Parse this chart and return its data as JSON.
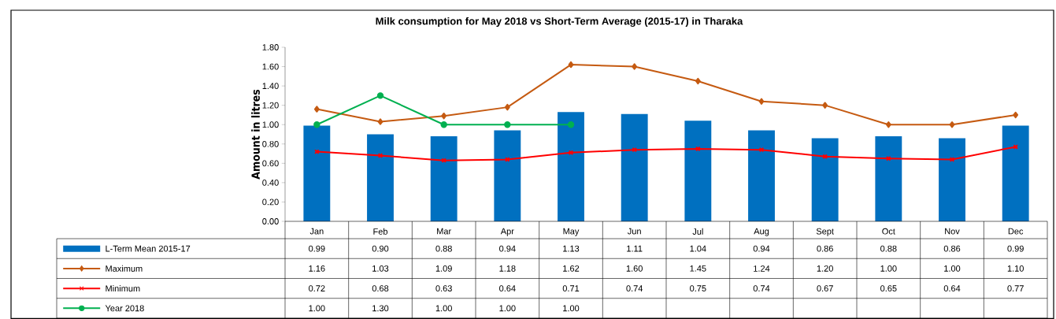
{
  "chart_data": {
    "type": "bar",
    "title": "Milk consumption for May 2018 vs Short-Term Average (2015-17) in Tharaka",
    "ylabel": "Amount in litres",
    "categories": [
      "Jan",
      "Feb",
      "Mar",
      "Apr",
      "May",
      "Jun",
      "Jul",
      "Aug",
      "Sept",
      "Oct",
      "Nov",
      "Dec"
    ],
    "ylim": [
      0,
      1.8
    ],
    "yticks": [
      {
        "value": 0,
        "label": "0.00"
      },
      {
        "value": 0.2,
        "label": "0.20"
      },
      {
        "value": 0.4,
        "label": "0.40"
      },
      {
        "value": 0.6,
        "label": "0.60"
      },
      {
        "value": 0.8,
        "label": "0.80"
      },
      {
        "value": 1,
        "label": "1.00"
      },
      {
        "value": 1.2,
        "label": "1.20"
      },
      {
        "value": 1.4,
        "label": "1.40"
      },
      {
        "value": 1.6,
        "label": "1.60"
      },
      {
        "value": 1.8,
        "label": "1.80"
      }
    ],
    "legend": "bottom",
    "grid": false,
    "series": [
      {
        "name": "L-Term Mean 2015-17",
        "color": "#0070c0",
        "values": [
          0.99,
          0.9,
          0.88,
          0.94,
          1.13,
          1.11,
          1.04,
          0.94,
          0.86,
          0.88,
          0.86,
          0.99
        ],
        "value_labels": [
          "0.99",
          "0.90",
          "0.88",
          "0.94",
          "1.13",
          "1.11",
          "1.04",
          "0.94",
          "0.86",
          "0.88",
          "0.86",
          "0.99"
        ]
      },
      {
        "name": "Maximum",
        "type": "line",
        "color": "#c55a11",
        "marker": "diamond",
        "values": [
          1.16,
          1.03,
          1.09,
          1.18,
          1.62,
          1.6,
          1.45,
          1.24,
          1.2,
          1.0,
          1.0,
          1.1
        ],
        "value_labels": [
          "1.16",
          "1.03",
          "1.09",
          "1.18",
          "1.62",
          "1.60",
          "1.45",
          "1.24",
          "1.20",
          "1.00",
          "1.00",
          "1.10"
        ]
      },
      {
        "name": "Minimum",
        "type": "line",
        "color": "#ff0000",
        "marker": "cross",
        "values": [
          0.72,
          0.68,
          0.63,
          0.64,
          0.71,
          0.74,
          0.75,
          0.74,
          0.67,
          0.65,
          0.64,
          0.77
        ],
        "value_labels": [
          "0.72",
          "0.68",
          "0.63",
          "0.64",
          "0.71",
          "0.74",
          "0.75",
          "0.74",
          "0.67",
          "0.65",
          "0.64",
          "0.77"
        ]
      },
      {
        "name": "Year 2018",
        "type": "line",
        "color": "#00b050",
        "marker": "circle",
        "values": [
          1.0,
          1.3,
          1.0,
          1.0,
          1.0,
          null,
          null,
          null,
          null,
          null,
          null,
          null
        ],
        "value_labels": [
          "1.00",
          "1.30",
          "1.00",
          "1.00",
          "1.00",
          null,
          null,
          null,
          null,
          null,
          null,
          null
        ]
      }
    ]
  }
}
